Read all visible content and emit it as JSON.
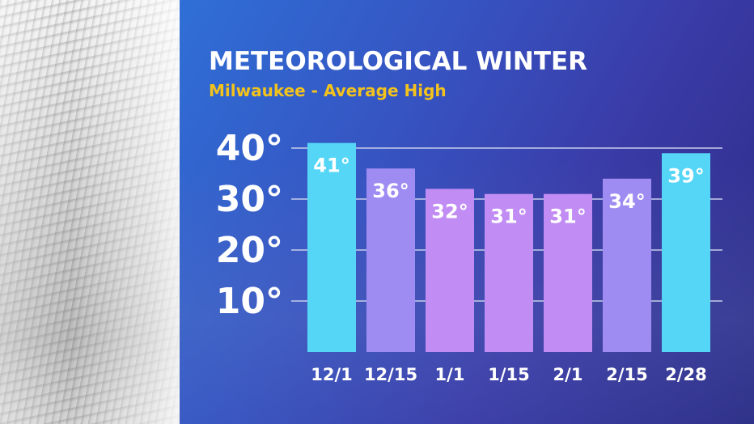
{
  "header": {
    "title": "METEOROLOGICAL WINTER",
    "subtitle": "Milwaukee - Average High"
  },
  "colors": {
    "title": "#ffffff",
    "subtitle": "#f3c31c",
    "bar_cyan": "#55d6f7",
    "bar_lavender": "#9f8cf2",
    "bar_violet": "#c18cf3"
  },
  "chart_data": {
    "type": "bar",
    "categories": [
      "12/1",
      "12/15",
      "1/1",
      "1/15",
      "2/1",
      "2/15",
      "2/28"
    ],
    "values": [
      41,
      36,
      32,
      31,
      31,
      34,
      39
    ],
    "data_labels": [
      "41°",
      "36°",
      "32°",
      "31°",
      "31°",
      "34°",
      "39°"
    ],
    "bar_colors": [
      "#55d6f7",
      "#9f8cf2",
      "#c18cf3",
      "#c18cf3",
      "#c18cf3",
      "#9f8cf2",
      "#55d6f7"
    ],
    "y_ticks": [
      10,
      20,
      30,
      40
    ],
    "y_tick_labels": [
      "10°",
      "20°",
      "30°",
      "40°"
    ],
    "ylim": [
      0,
      40
    ],
    "grid": true,
    "legend": "none",
    "xlabel": "",
    "ylabel": ""
  }
}
